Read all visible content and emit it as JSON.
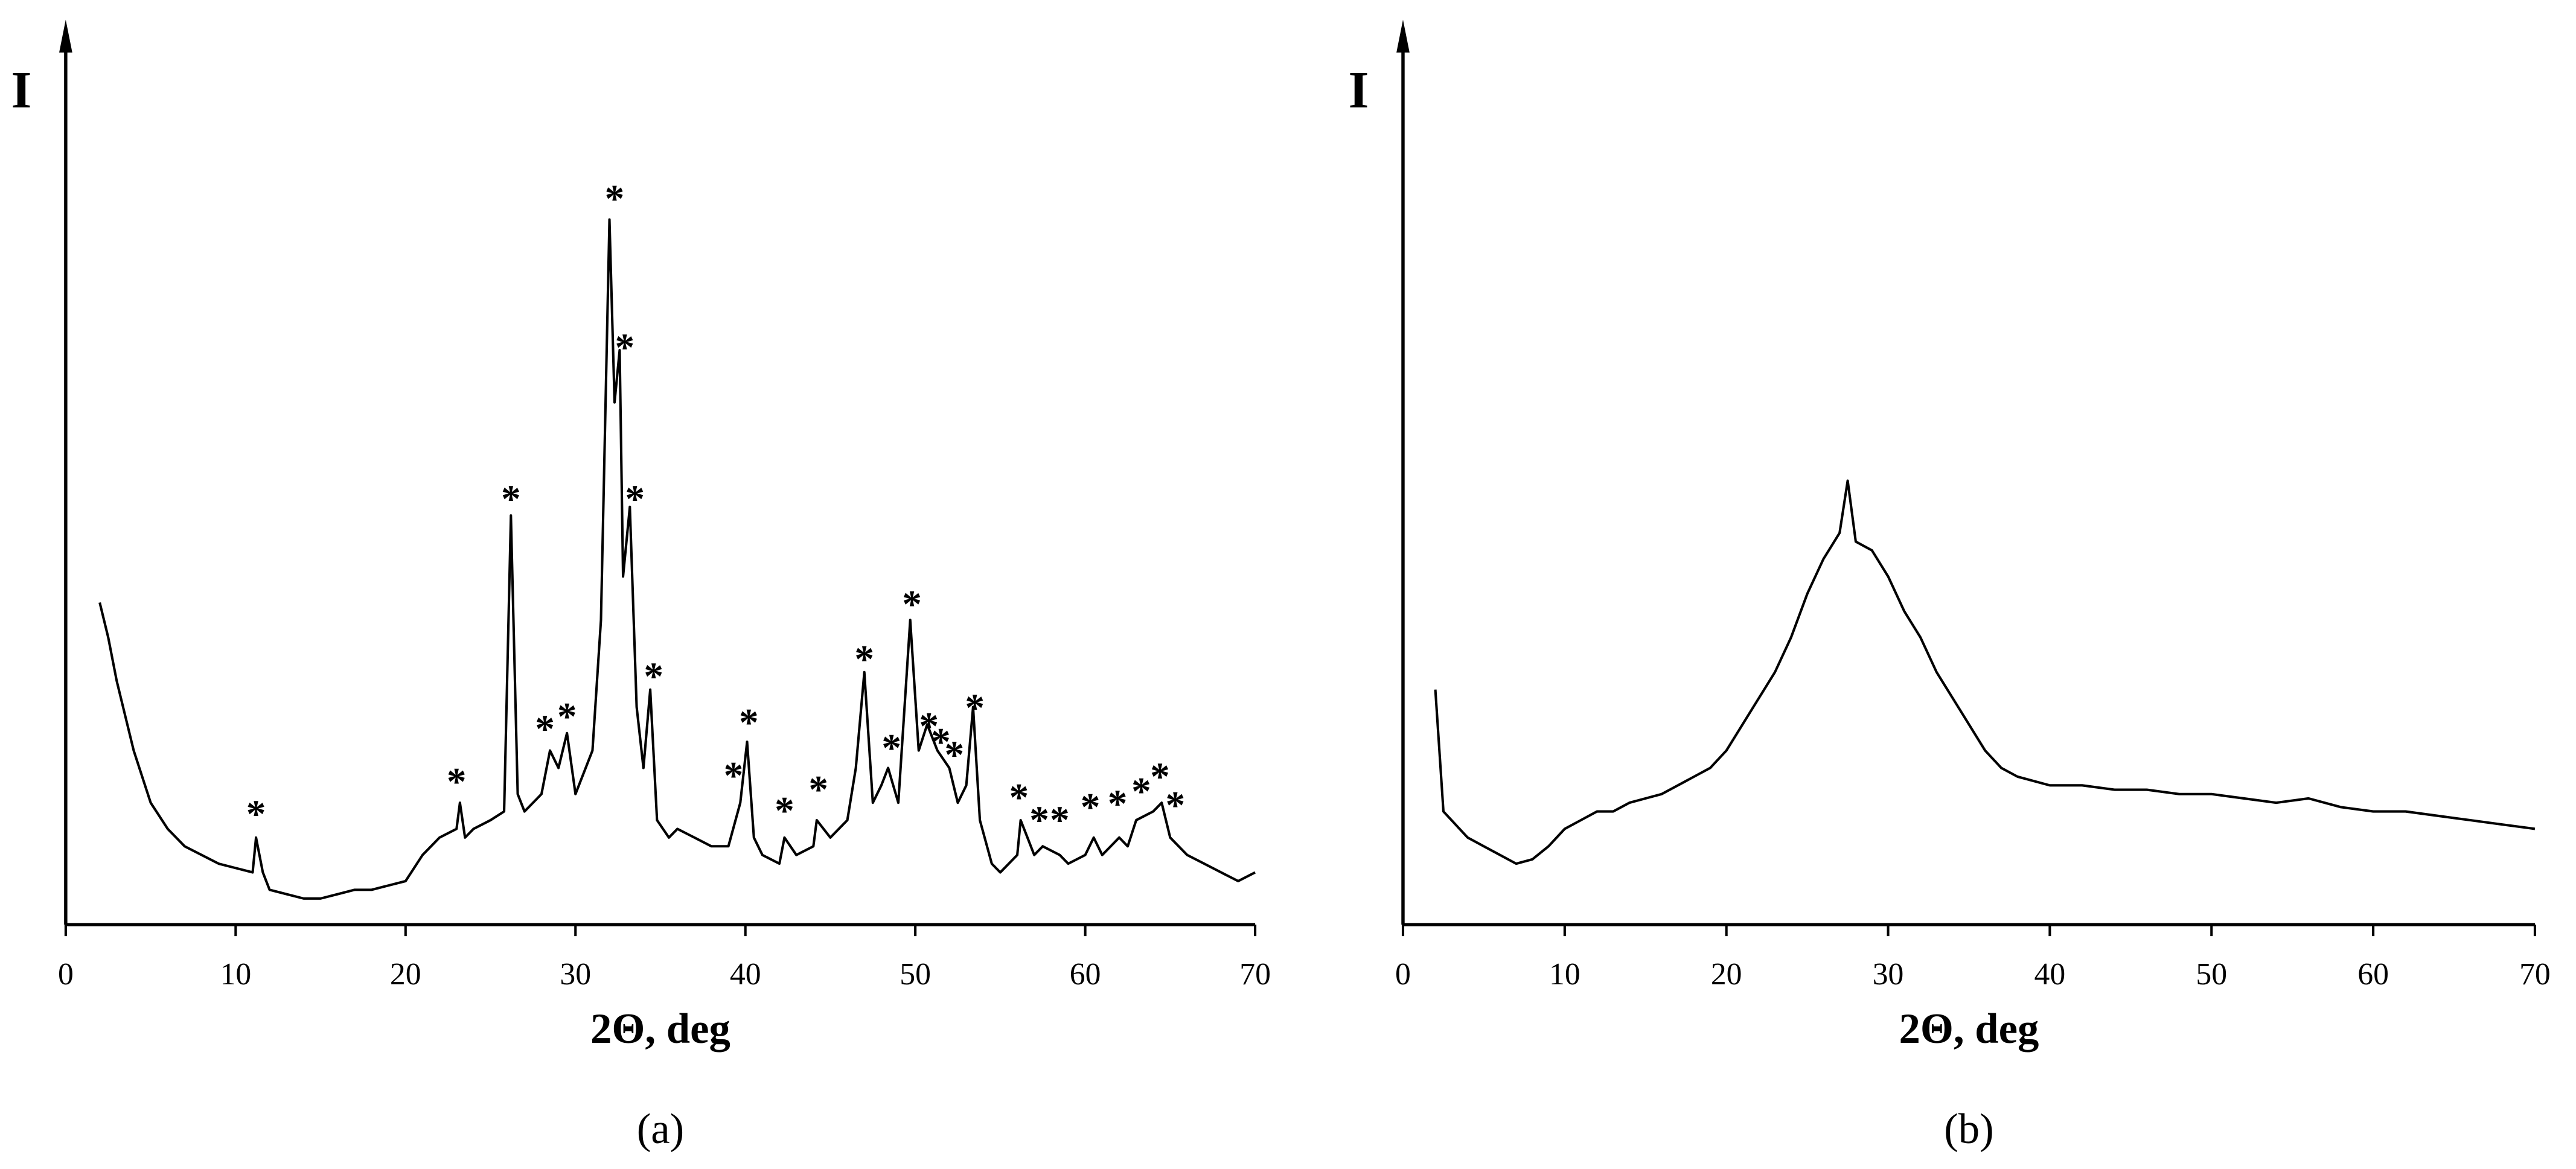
{
  "chart_data": [
    {
      "type": "line",
      "y_label": "I",
      "x_label": "2Θ, deg",
      "caption": "(a)",
      "color": "#000000",
      "xlim": [
        0,
        70
      ],
      "xticks": [
        0,
        10,
        20,
        30,
        40,
        50,
        60,
        70
      ],
      "ylim": [
        0,
        100
      ],
      "x": [
        2,
        2.5,
        3,
        3.5,
        4,
        5,
        6,
        7,
        8,
        9,
        10,
        11,
        11.2,
        11.6,
        12,
        13,
        14,
        15,
        16,
        17,
        18,
        19,
        20,
        21,
        22,
        23,
        23.2,
        23.5,
        24,
        25,
        25.8,
        26.2,
        26.6,
        27,
        28,
        28.5,
        29,
        29.5,
        30,
        31,
        31.5,
        32,
        32.3,
        32.6,
        32.8,
        33.2,
        33.6,
        34,
        34.4,
        34.8,
        35.5,
        36,
        37,
        38,
        39,
        39.7,
        40.1,
        40.5,
        41,
        42,
        42.3,
        43,
        44,
        44.2,
        45,
        46,
        46.5,
        47,
        47.5,
        48,
        48.4,
        49,
        49.7,
        50.2,
        50.7,
        51.3,
        52,
        52.5,
        53,
        53.4,
        53.8,
        54.5,
        55,
        56,
        56.2,
        57,
        57.5,
        58.5,
        59,
        60,
        60.5,
        61,
        62,
        62.5,
        63,
        64,
        64.5,
        65,
        66,
        67,
        68,
        69,
        70
      ],
      "values": [
        37,
        33,
        28,
        24,
        20,
        14,
        11,
        9,
        8,
        7,
        6.5,
        6,
        10,
        6,
        4,
        3.5,
        3,
        3,
        3.5,
        4,
        4,
        4.5,
        5,
        8,
        10,
        11,
        14,
        10,
        11,
        12,
        13,
        47,
        15,
        13,
        15,
        20,
        18,
        22,
        15,
        20,
        35,
        81,
        60,
        66,
        40,
        48,
        25,
        18,
        27,
        12,
        10,
        11,
        10,
        9,
        9,
        14,
        21,
        10,
        8,
        7,
        10,
        8,
        9,
        12,
        10,
        12,
        18,
        29,
        14,
        16,
        18,
        14,
        35,
        20,
        23,
        20,
        18,
        14,
        16,
        25,
        12,
        7,
        6,
        8,
        12,
        8,
        9,
        8,
        7,
        8,
        10,
        8,
        10,
        9,
        12,
        13,
        14,
        10,
        8,
        7,
        6,
        5,
        6
      ],
      "annotations": [
        {
          "text": "*",
          "x": 11.2,
          "y": 12.8
        },
        {
          "text": "*",
          "x": 23,
          "y": 16.5
        },
        {
          "text": "*",
          "x": 26.2,
          "y": 49
        },
        {
          "text": "*",
          "x": 28.2,
          "y": 22.6
        },
        {
          "text": "*",
          "x": 29.5,
          "y": 24
        },
        {
          "text": "*",
          "x": 32.3,
          "y": 83.5
        },
        {
          "text": "*",
          "x": 32.9,
          "y": 66.4
        },
        {
          "text": "*",
          "x": 33.5,
          "y": 49
        },
        {
          "text": "*",
          "x": 34.6,
          "y": 28.6
        },
        {
          "text": "*",
          "x": 39.3,
          "y": 17.2
        },
        {
          "text": "*",
          "x": 40.2,
          "y": 23.3
        },
        {
          "text": "*",
          "x": 42.3,
          "y": 13.2
        },
        {
          "text": "*",
          "x": 44.3,
          "y": 15.6
        },
        {
          "text": "*",
          "x": 47,
          "y": 30.6
        },
        {
          "text": "*",
          "x": 48.6,
          "y": 20.4
        },
        {
          "text": "*",
          "x": 49.8,
          "y": 36.9
        },
        {
          "text": "*",
          "x": 50.8,
          "y": 22.9
        },
        {
          "text": "*",
          "x": 51.5,
          "y": 21.1
        },
        {
          "text": "*",
          "x": 52.3,
          "y": 19.6
        },
        {
          "text": "*",
          "x": 53.5,
          "y": 25
        },
        {
          "text": "*",
          "x": 56.1,
          "y": 14.7
        },
        {
          "text": "*",
          "x": 57.3,
          "y": 12.1
        },
        {
          "text": "*",
          "x": 58.5,
          "y": 12.1
        },
        {
          "text": "*",
          "x": 60.3,
          "y": 13.6
        },
        {
          "text": "*",
          "x": 61.9,
          "y": 14
        },
        {
          "text": "*",
          "x": 63.3,
          "y": 15.4
        },
        {
          "text": "*",
          "x": 64.4,
          "y": 17.1
        },
        {
          "text": "*",
          "x": 65.3,
          "y": 13.8
        }
      ]
    },
    {
      "type": "line",
      "y_label": "I",
      "x_label": "2Θ, deg",
      "caption": "(b)",
      "color": "#000000",
      "xlim": [
        0,
        70
      ],
      "xticks": [
        0,
        10,
        20,
        30,
        40,
        50,
        60,
        70
      ],
      "ylim": [
        0,
        100
      ],
      "x": [
        2,
        2.5,
        3,
        4,
        5,
        6,
        7,
        8,
        9,
        10,
        11,
        12,
        13,
        14,
        15,
        16,
        17,
        18,
        19,
        20,
        21,
        22,
        23,
        24,
        25,
        26,
        27,
        27.5,
        28,
        29,
        30,
        31,
        32,
        33,
        34,
        35,
        36,
        37,
        38,
        40,
        42,
        44,
        46,
        48,
        50,
        52,
        54,
        56,
        58,
        60,
        62,
        64,
        66,
        68,
        70
      ],
      "values": [
        27,
        13,
        12,
        10,
        9,
        8,
        7,
        7.5,
        9,
        11,
        12,
        13,
        13,
        14,
        14.5,
        15,
        16,
        17,
        18,
        20,
        23,
        26,
        29,
        33,
        38,
        42,
        45,
        51,
        44,
        43,
        40,
        36,
        33,
        29,
        26,
        23,
        20,
        18,
        17,
        16,
        16,
        15.5,
        15.5,
        15,
        15,
        14.5,
        14,
        14.5,
        13.5,
        13,
        13,
        12.5,
        12,
        11.5,
        11
      ]
    }
  ]
}
